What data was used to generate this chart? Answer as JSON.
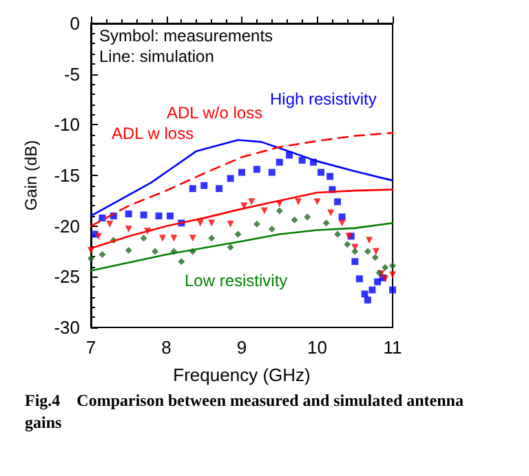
{
  "chart_data": {
    "type": "line",
    "title": "Fig.4    Comparison between measured and simulated antenna gains",
    "xlabel": "Frequency (GHz)",
    "ylabel": "Gain (dB)",
    "xlim": [
      7,
      11
    ],
    "xticks": [
      7,
      8,
      9,
      10,
      11
    ],
    "ylim": [
      -30,
      0
    ],
    "yticks": [
      -30,
      -25,
      -20,
      -15,
      -10,
      -5,
      0
    ],
    "grid": false,
    "annotations": [
      "Symbol: measurements",
      "Line: simulation",
      "High resistivity",
      "ADL w/o loss",
      "ADL w loss",
      "Low resistivity"
    ],
    "series": [
      {
        "color": "#0000ff",
        "marker": "none",
        "line_style": "solid",
        "x": [
          7,
          7.8,
          8.4,
          8.95,
          9.26,
          9.5,
          10,
          10.5,
          11
        ],
        "values": [
          -19,
          -15.7,
          -12.6,
          -11.5,
          -11.7,
          -12.3,
          -13.6,
          -14.6,
          -15.5
        ]
      },
      {
        "color": "#ff0000",
        "marker": "none",
        "line_style": "dashed",
        "x": [
          7,
          7.5,
          8,
          8.5,
          9,
          9.5,
          10,
          10.5,
          11
        ],
        "values": [
          -20,
          -18,
          -16.5,
          -14.8,
          -13.2,
          -12.2,
          -11.6,
          -11.1,
          -10.8
        ]
      },
      {
        "color": "#ff0000",
        "marker": "none",
        "line_style": "solid",
        "x": [
          7,
          7.5,
          8,
          8.5,
          9,
          9.5,
          10,
          10.5,
          11
        ],
        "values": [
          -22.2,
          -21,
          -20,
          -19.2,
          -18.3,
          -17.5,
          -16.7,
          -16.5,
          -16.4
        ]
      },
      {
        "color": "#008000",
        "marker": "none",
        "line_style": "solid",
        "x": [
          7,
          8,
          9,
          9.5,
          10,
          10.5,
          11
        ],
        "values": [
          -24.4,
          -22.8,
          -21.5,
          -20.8,
          -20.4,
          -20.2,
          -19.7
        ]
      },
      {
        "type": "scatter",
        "color": "#0000ff",
        "marker": "square",
        "x": [
          7.05,
          7.15,
          7.3,
          7.5,
          7.7,
          7.9,
          8.05,
          8.2,
          8.35,
          8.5,
          8.7,
          8.85,
          9.0,
          9.2,
          9.4,
          9.5,
          9.63,
          9.8,
          9.95,
          10.05,
          10.17,
          10.2,
          10.27,
          10.33,
          10.45,
          10.5,
          10.56,
          10.63,
          10.67,
          10.73,
          10.8,
          10.87,
          11
        ],
        "values": [
          -20.8,
          -19.2,
          -19,
          -18.8,
          -18.9,
          -19,
          -19,
          -19.7,
          -16.3,
          -16,
          -16.3,
          -15.3,
          -14.7,
          -14.4,
          -14.7,
          -13.7,
          -13,
          -13.5,
          -13.7,
          -14.7,
          -15.1,
          -16.4,
          -17.6,
          -19.1,
          -21,
          -23.5,
          -25.2,
          -26.7,
          -27.3,
          -26.3,
          -25.5,
          -25.1,
          -26.3
        ]
      },
      {
        "type": "scatter",
        "color": "#ff0000",
        "marker": "triangle",
        "x": [
          7,
          7.1,
          7.25,
          7.5,
          7.75,
          7.95,
          8.1,
          8.35,
          8.45,
          8.6,
          8.85,
          9.03,
          9.13,
          9.3,
          9.5,
          9.75,
          10,
          10.18,
          10.33,
          10.42,
          10.5,
          10.69,
          10.78,
          10.85,
          10.9,
          11
        ],
        "values": [
          -22.4,
          -21,
          -19.8,
          -20.3,
          -20.5,
          -21.2,
          -21.2,
          -21.2,
          -19.7,
          -19.7,
          -19.8,
          -18,
          -17.6,
          -18.5,
          -17.8,
          -17.6,
          -17.6,
          -18.7,
          -19.7,
          -21,
          -22.1,
          -21.4,
          -22.5,
          -24.7,
          -25.2,
          -24.8
        ]
      },
      {
        "type": "scatter",
        "color": "#1e6b1e",
        "marker": "diamond",
        "x": [
          7,
          7.15,
          7.3,
          7.5,
          7.7,
          7.85,
          8.1,
          8.2,
          8.35,
          8.6,
          8.85,
          8.95,
          9.2,
          9.4,
          9.5,
          9.7,
          9.87,
          10.12,
          10.27,
          10.4,
          10.5,
          10.67,
          10.77,
          10.82,
          10.9,
          11
        ],
        "values": [
          -23.2,
          -22.8,
          -21.4,
          -22.4,
          -21.2,
          -22.5,
          -22.5,
          -23.5,
          -22.5,
          -21.2,
          -22.1,
          -20.8,
          -19.8,
          -20.3,
          -18.5,
          -19.4,
          -19.1,
          -19.7,
          -20.8,
          -21.8,
          -22.5,
          -22.5,
          -23.1,
          -24.6,
          -24.1,
          -23.9
        ]
      }
    ]
  }
}
